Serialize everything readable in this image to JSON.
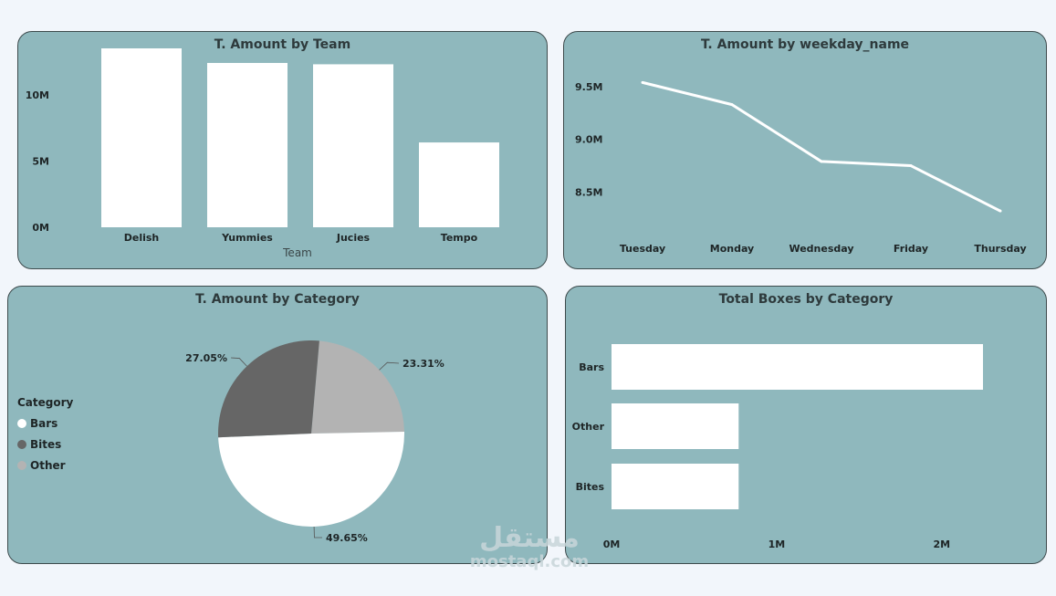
{
  "chart_data": [
    {
      "type": "bar",
      "title": "T. Amount by Team",
      "xlabel": "Team",
      "ylabel": "",
      "categories": [
        "Delish",
        "Yummies",
        "Jucies",
        "Tempo"
      ],
      "values": [
        13.5,
        12.4,
        12.3,
        6.4
      ],
      "value_unit": "M",
      "ylim": [
        0,
        13.5
      ],
      "y_ticks": [
        "0M",
        "5M",
        "10M"
      ],
      "y_tick_values": [
        0,
        5,
        10
      ],
      "grid": false,
      "bar_color": "#ffffff"
    },
    {
      "type": "line",
      "title": "T. Amount by weekday_name",
      "xlabel": "",
      "ylabel": "",
      "categories": [
        "Tuesday",
        "Monday",
        "Wednesday",
        "Friday",
        "Thursday"
      ],
      "values": [
        9.54,
        9.33,
        8.79,
        8.75,
        8.32
      ],
      "value_unit": "M",
      "ylim": [
        8.2,
        9.63
      ],
      "y_ticks": [
        "8.5M",
        "9.0M",
        "9.5M"
      ],
      "y_tick_values": [
        8.5,
        9.0,
        9.5
      ],
      "grid": false,
      "line_color": "#ffffff"
    },
    {
      "type": "pie",
      "title": "T. Amount by Category",
      "legend_title": "Category",
      "legend_position": "left",
      "slices": [
        {
          "label": "Bars",
          "value": 49.65,
          "display": "49.65%",
          "color": "#ffffff"
        },
        {
          "label": "Bites",
          "value": 27.05,
          "display": "27.05%",
          "color": "#666666"
        },
        {
          "label": "Other",
          "value": 23.31,
          "display": "23.31%",
          "color": "#b3b3b3"
        }
      ]
    },
    {
      "type": "bar",
      "orientation": "horizontal",
      "title": "Total Boxes by Category",
      "xlabel": "",
      "ylabel": "",
      "categories": [
        "Bars",
        "Other",
        "Bites"
      ],
      "values": [
        2.25,
        0.77,
        0.77
      ],
      "value_unit": "M",
      "xlim": [
        0,
        2.25
      ],
      "x_ticks": [
        "0M",
        "1M",
        "2M"
      ],
      "x_tick_values": [
        0,
        1,
        2
      ],
      "grid": false,
      "bar_color": "#ffffff"
    }
  ],
  "watermark": {
    "logo_text": "مستقل",
    "url": "mostaql.com"
  }
}
